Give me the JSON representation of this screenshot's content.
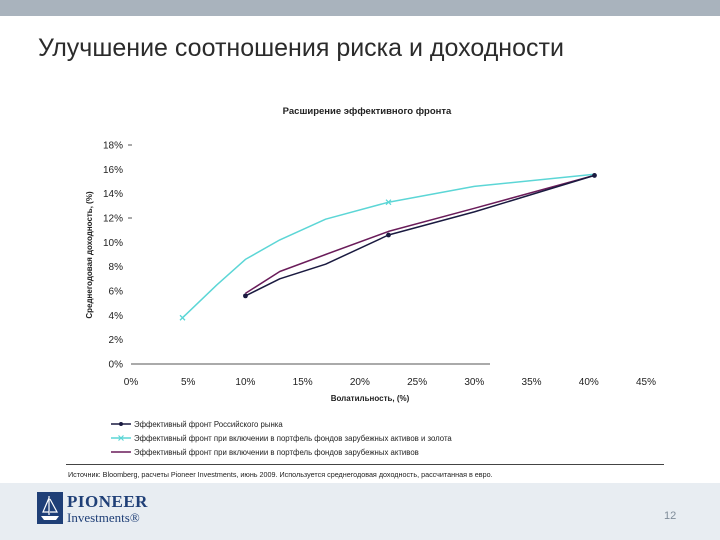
{
  "slide": {
    "title": "Улучшение соотношения риска и доходности",
    "source": "Источник: Bloomberg, расчеты Pioneer Investments, июнь 2009. Используется среднегодовая доходность, рассчитанная в евро.",
    "page_number": "12"
  },
  "logo": {
    "name": "PIONEER",
    "sub": "Investments®"
  },
  "colors": {
    "top_bar": "#a9b3bd",
    "series_russian": "#1a1a40",
    "series_gold": "#5cd6d6",
    "series_foreign": "#6a1c5a"
  },
  "chart_data": {
    "type": "line",
    "title": "Расширение эффективного фронта",
    "xlabel": "Волатильность, (%)",
    "ylabel": "Среднегодовая доходность, (%)",
    "xlim": [
      0,
      45
    ],
    "ylim": [
      0,
      18
    ],
    "x_ticks": [
      "0%",
      "5%",
      "10%",
      "15%",
      "20%",
      "25%",
      "30%",
      "35%",
      "40%",
      "45%"
    ],
    "y_ticks": [
      "0%",
      "2%",
      "4%",
      "6%",
      "8%",
      "10%",
      "12%",
      "14%",
      "16%",
      "18%"
    ],
    "grid": false,
    "legend_position": "bottom",
    "series": [
      {
        "name": "Эффективный фронт Российского рынка",
        "marker": "dot",
        "points": [
          [
            10,
            5.6
          ],
          [
            13,
            7.0
          ],
          [
            17,
            8.2
          ],
          [
            22.5,
            10.6
          ],
          [
            30,
            12.5
          ],
          [
            40.5,
            15.5
          ]
        ]
      },
      {
        "name": "Эффективный фронт при включении в портфель фондов зарубежных активов и золота",
        "marker": "x",
        "points": [
          [
            4.5,
            3.8
          ],
          [
            7.5,
            6.5
          ],
          [
            10,
            8.6
          ],
          [
            13,
            10.2
          ],
          [
            17,
            11.9
          ],
          [
            22.5,
            13.3
          ],
          [
            30,
            14.6
          ],
          [
            40.5,
            15.6
          ]
        ]
      },
      {
        "name": "Эффективный фронт при включении в портфель фондов зарубежных активов",
        "marker": "none",
        "points": [
          [
            10,
            5.8
          ],
          [
            13,
            7.6
          ],
          [
            17,
            9.0
          ],
          [
            22.5,
            10.9
          ],
          [
            30,
            12.8
          ],
          [
            40.5,
            15.5
          ]
        ]
      }
    ],
    "key_points": [
      {
        "x": 4.5,
        "y": 3.8,
        "marker": "x"
      },
      {
        "x": 10,
        "y": 5.6,
        "marker": "dot"
      },
      {
        "x": 22.5,
        "y": 10.6,
        "marker": "dot"
      },
      {
        "x": 22.5,
        "y": 13.3,
        "marker": "x"
      },
      {
        "x": 40.5,
        "y": 15.5,
        "marker": "dot"
      }
    ]
  }
}
